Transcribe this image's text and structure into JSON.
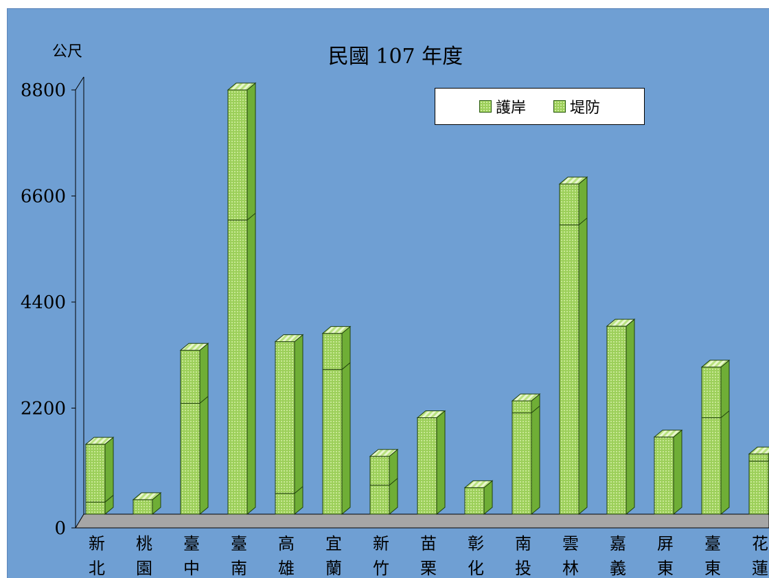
{
  "chart_data": {
    "type": "bar",
    "stacked": true,
    "three_d": true,
    "title": "民國 107 年度",
    "ylabel": "公尺",
    "ylim": [
      0,
      8800
    ],
    "yticks": [
      "0",
      "2200",
      "4400",
      "6600",
      "8800"
    ],
    "legend_position": "top-right",
    "categories": [
      [
        "新",
        "北"
      ],
      [
        "桃",
        "園"
      ],
      [
        "臺",
        "中"
      ],
      [
        "臺",
        "南"
      ],
      [
        "高",
        "雄"
      ],
      [
        "宜",
        "蘭"
      ],
      [
        "新",
        "竹"
      ],
      [
        "苗",
        "栗"
      ],
      [
        "彰",
        "化"
      ],
      [
        "南",
        "投"
      ],
      [
        "雲",
        "林"
      ],
      [
        "嘉",
        "義"
      ],
      [
        "屏",
        "東"
      ],
      [
        "臺",
        "東"
      ],
      [
        "花",
        "蓮"
      ]
    ],
    "series": [
      {
        "name": "護岸",
        "values": [
          250,
          300,
          2300,
          6100,
          430,
          3000,
          600,
          2000,
          550,
          2100,
          6000,
          3900,
          1600,
          2000,
          1100
        ]
      },
      {
        "name": "堤防",
        "values": [
          1200,
          0,
          1100,
          2700,
          3150,
          750,
          600,
          0,
          0,
          250,
          850,
          0,
          0,
          1050,
          150
        ]
      }
    ],
    "colors": {
      "background": "#6f9fd3",
      "bar_front": "#9ccf5a",
      "bar_side": "#6fae36",
      "bar_top": "#b9e27f",
      "floor": "#a6a6a6"
    }
  }
}
